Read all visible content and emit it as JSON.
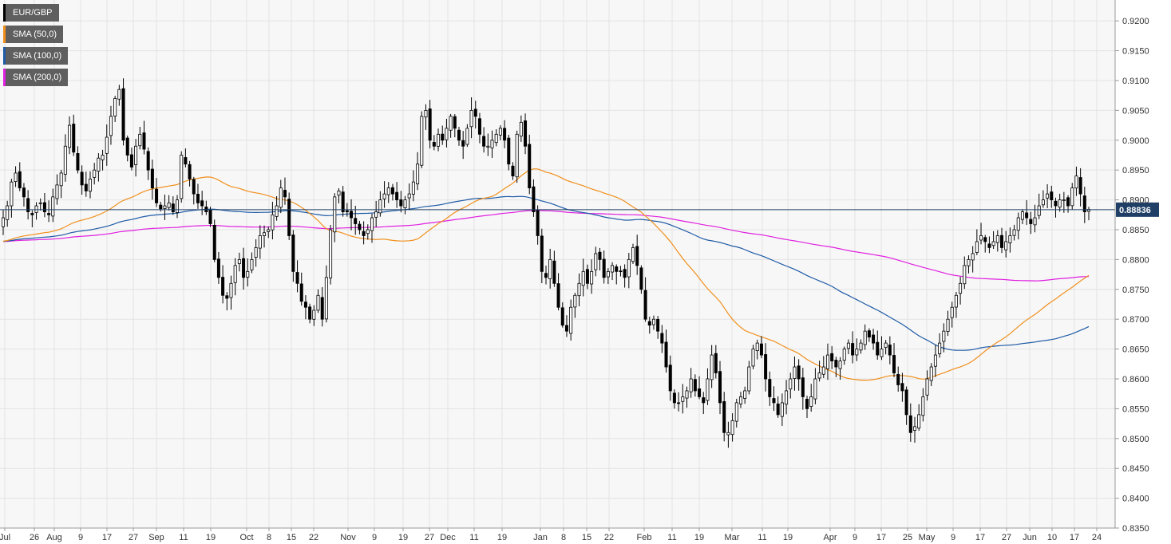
{
  "chart_data": {
    "type": "candlestick",
    "symbol": "EUR/GBP",
    "current_price_label": "0.88836",
    "current_price": 0.88836,
    "ylim": [
      0.835,
      0.9235
    ],
    "y_ticks": [
      "0.9200",
      "0.9150",
      "0.9100",
      "0.9050",
      "0.9000",
      "0.8950",
      "0.8900",
      "0.8850",
      "0.8800",
      "0.8750",
      "0.8700",
      "0.8650",
      "0.8600",
      "0.8550",
      "0.8500",
      "0.8450",
      "0.8400",
      "0.8350"
    ],
    "x_tick_labels": [
      "Jul",
      "26",
      "Aug",
      "9",
      "17",
      "27",
      "Sep",
      "11",
      "19",
      "Oct",
      "8",
      "15",
      "22",
      "Nov",
      "9",
      "19",
      "27",
      "Dec",
      "11",
      "19",
      "Jan",
      "8",
      "15",
      "22",
      "Feb",
      "11",
      "19",
      "Mar",
      "11",
      "19",
      "Apr",
      "9",
      "17",
      "25",
      "May",
      "9",
      "17",
      "27",
      "Jun",
      "10",
      "17",
      "24"
    ],
    "series": [
      {
        "name": "EUR/GBP",
        "color": "#000000"
      },
      {
        "name": "SMA (50,0)",
        "color": "#f0901e"
      },
      {
        "name": "SMA (100,0)",
        "color": "#1f5ba6"
      },
      {
        "name": "SMA (200,0)",
        "color": "#e020e0"
      }
    ],
    "closes": [
      0.887,
      0.889,
      0.893,
      0.8945,
      0.892,
      0.8905,
      0.888,
      0.8875,
      0.889,
      0.8895,
      0.888,
      0.8875,
      0.8905,
      0.8925,
      0.8945,
      0.899,
      0.9025,
      0.898,
      0.895,
      0.8925,
      0.8915,
      0.8935,
      0.895,
      0.897,
      0.8975,
      0.9005,
      0.904,
      0.907,
      0.9085,
      0.9,
      0.8975,
      0.8955,
      0.899,
      0.901,
      0.8985,
      0.895,
      0.892,
      0.8895,
      0.8885,
      0.889,
      0.8895,
      0.888,
      0.89,
      0.8975,
      0.896,
      0.8935,
      0.891,
      0.8895,
      0.889,
      0.888,
      0.886,
      0.88,
      0.877,
      0.874,
      0.8735,
      0.876,
      0.879,
      0.88,
      0.877,
      0.878,
      0.88,
      0.882,
      0.884,
      0.8845,
      0.885,
      0.8875,
      0.889,
      0.892,
      0.8905,
      0.884,
      0.878,
      0.876,
      0.873,
      0.872,
      0.87,
      0.8715,
      0.874,
      0.87,
      0.877,
      0.885,
      0.8905,
      0.8915,
      0.888,
      0.888,
      0.887,
      0.886,
      0.885,
      0.884,
      0.885,
      0.887,
      0.888,
      0.89,
      0.891,
      0.892,
      0.891,
      0.89,
      0.889,
      0.89,
      0.891,
      0.893,
      0.896,
      0.904,
      0.905,
      0.9,
      0.899,
      0.901,
      0.9,
      0.902,
      0.904,
      0.902,
      0.9,
      0.899,
      0.902,
      0.905,
      0.904,
      0.901,
      0.899,
      0.899,
      0.9,
      0.901,
      0.902,
      0.9,
      0.896,
      0.894,
      0.901,
      0.903,
      0.899,
      0.892,
      0.888,
      0.884,
      0.878,
      0.877,
      0.88,
      0.876,
      0.872,
      0.869,
      0.868,
      0.872,
      0.874,
      0.876,
      0.878,
      0.876,
      0.878,
      0.881,
      0.88,
      0.877,
      0.878,
      0.879,
      0.878,
      0.878,
      0.877,
      0.88,
      0.882,
      0.879,
      0.875,
      0.87,
      0.869,
      0.87,
      0.868,
      0.866,
      0.862,
      0.858,
      0.856,
      0.856,
      0.857,
      0.858,
      0.86,
      0.858,
      0.857,
      0.856,
      0.86,
      0.864,
      0.861,
      0.856,
      0.851,
      0.851,
      0.853,
      0.856,
      0.857,
      0.858,
      0.862,
      0.865,
      0.866,
      0.864,
      0.86,
      0.857,
      0.856,
      0.854,
      0.856,
      0.858,
      0.86,
      0.862,
      0.86,
      0.857,
      0.855,
      0.857,
      0.86,
      0.861,
      0.862,
      0.864,
      0.863,
      0.862,
      0.863,
      0.865,
      0.866,
      0.864,
      0.865,
      0.866,
      0.868,
      0.867,
      0.866,
      0.864,
      0.865,
      0.866,
      0.864,
      0.861,
      0.859,
      0.858,
      0.854,
      0.851,
      0.852,
      0.854,
      0.857,
      0.86,
      0.862,
      0.864,
      0.866,
      0.868,
      0.87,
      0.872,
      0.874,
      0.876,
      0.879,
      0.88,
      0.881,
      0.883,
      0.884,
      0.883,
      0.882,
      0.883,
      0.884,
      0.882,
      0.883,
      0.884,
      0.885,
      0.887,
      0.888,
      0.887,
      0.886,
      0.887,
      0.889,
      0.89,
      0.891,
      0.89,
      0.889,
      0.89,
      0.89,
      0.889,
      0.892,
      0.894,
      0.891,
      0.888,
      0.8884
    ]
  }
}
